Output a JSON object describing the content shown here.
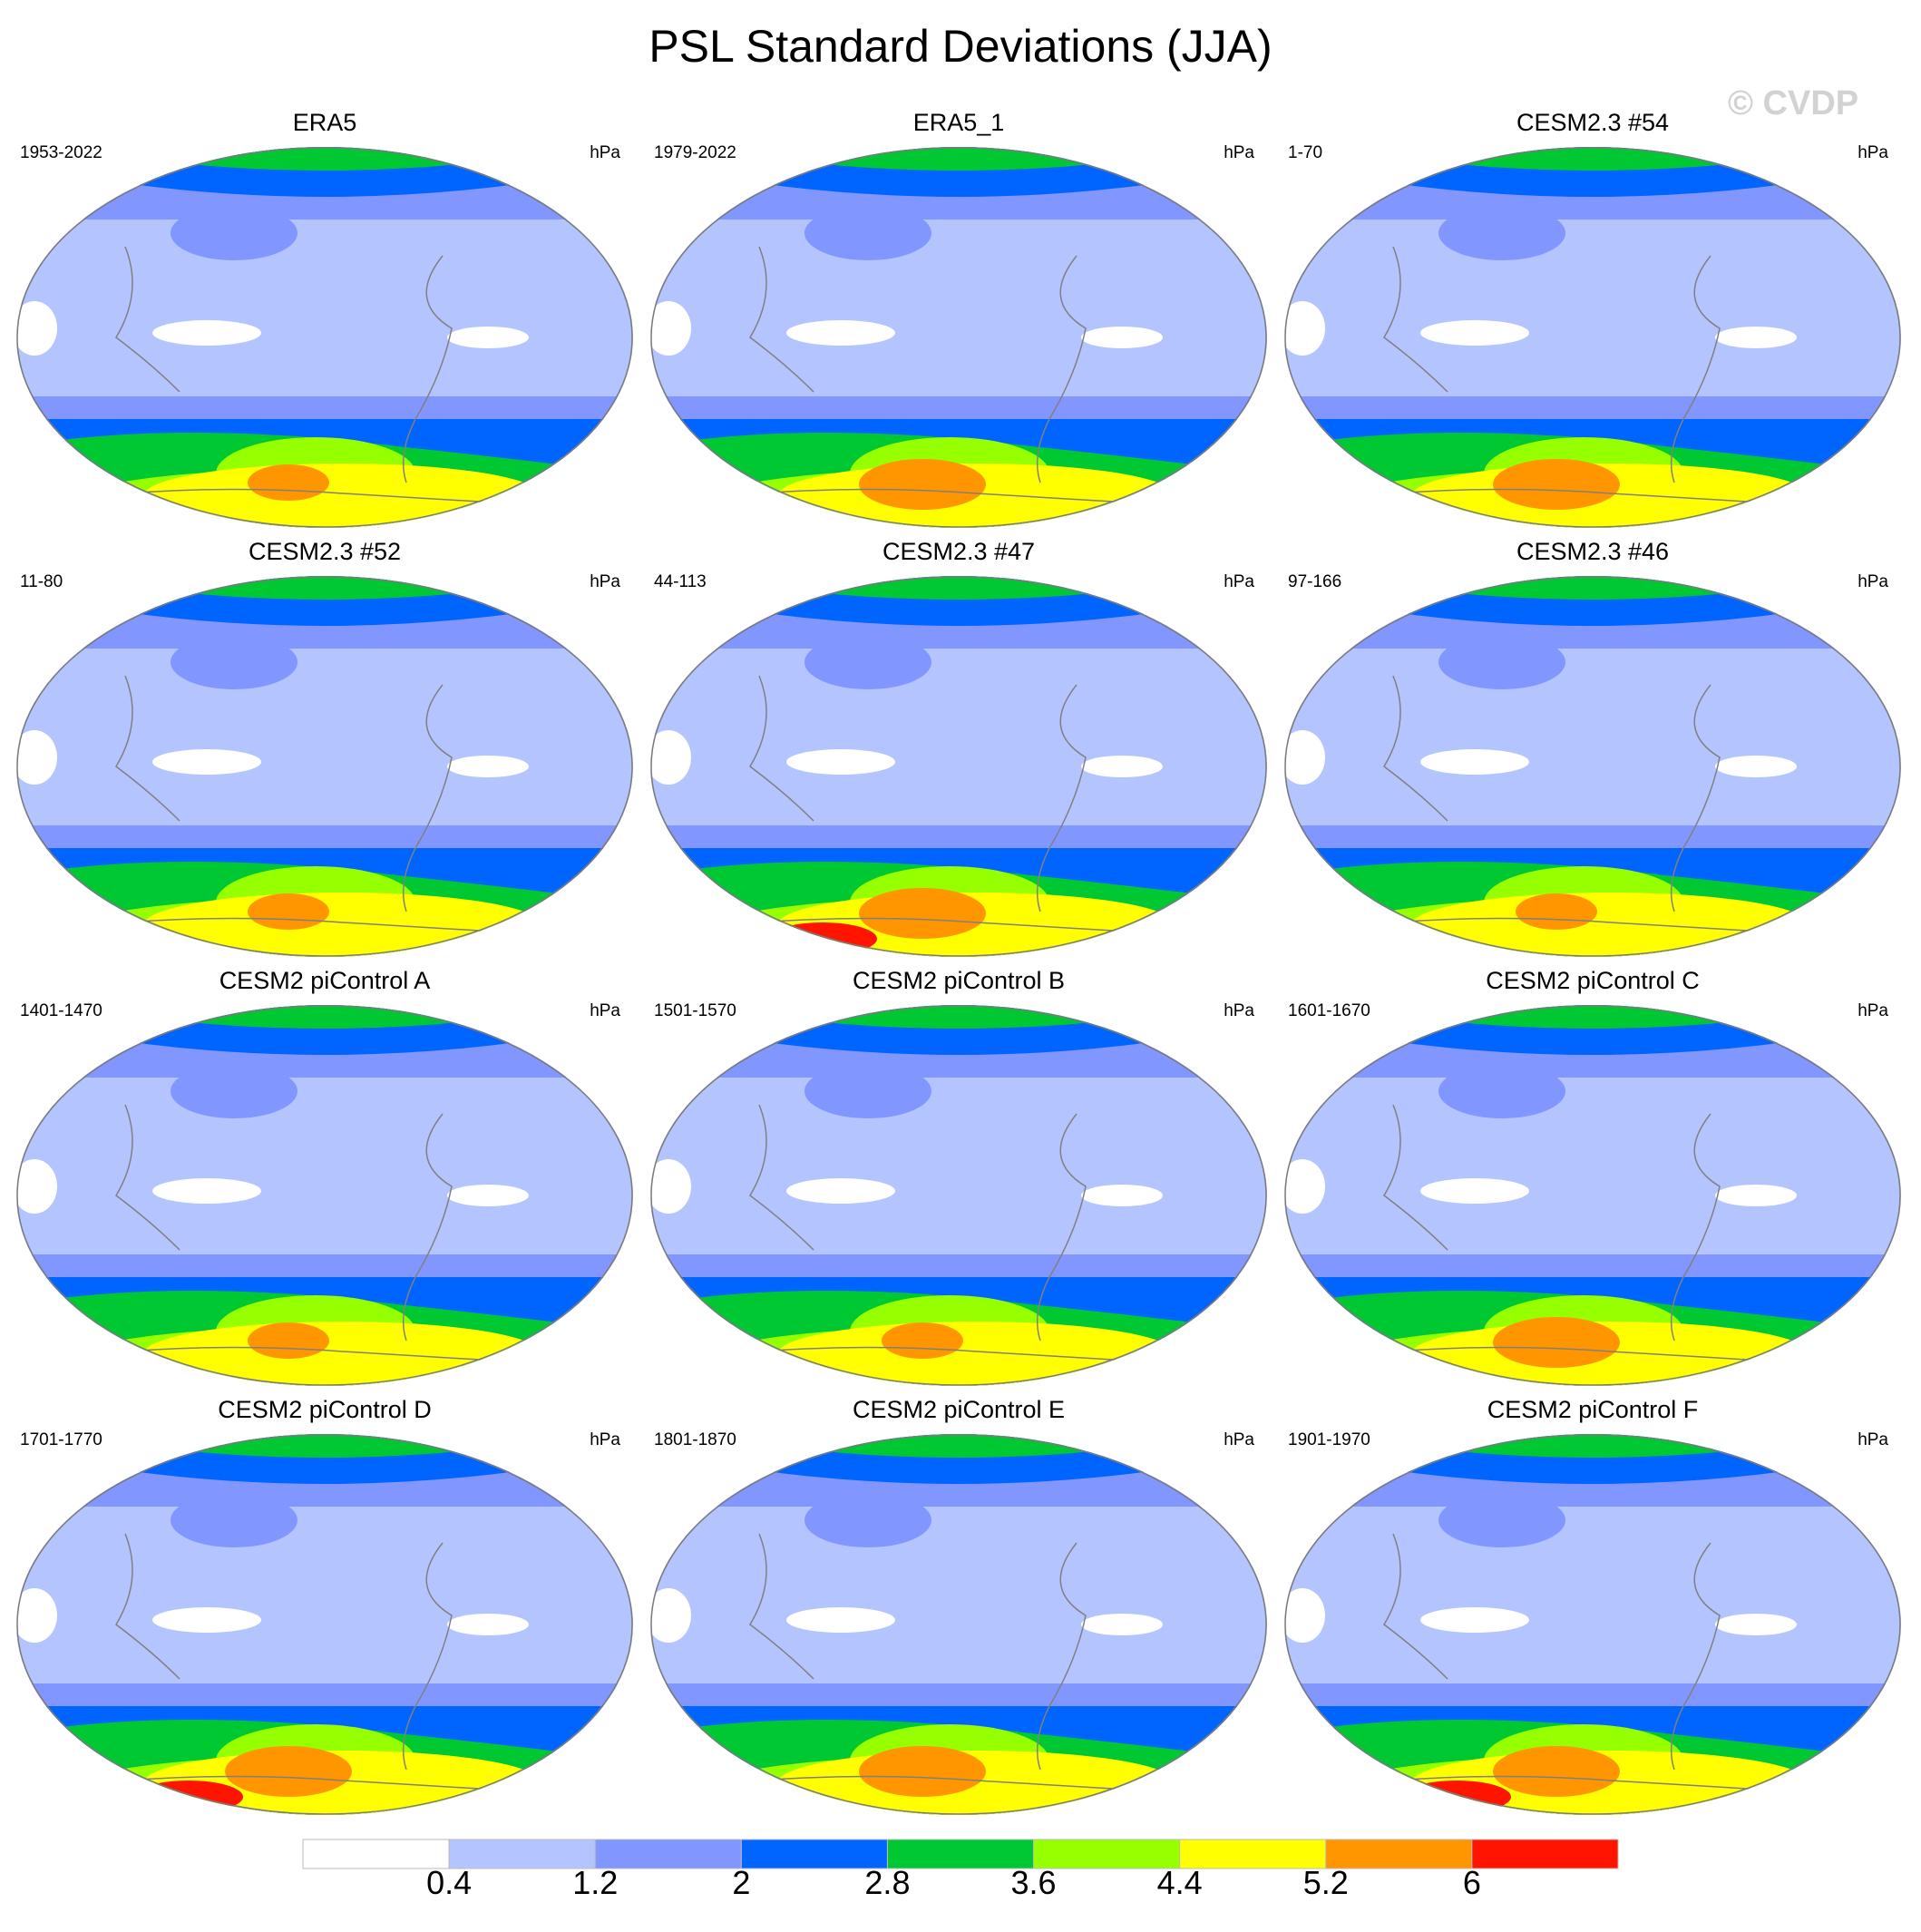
{
  "title": "PSL Standard Deviations (JJA)",
  "watermark": "© CVDP",
  "units": "hPa",
  "panels": [
    {
      "title": "ERA5",
      "period": "1953-2022"
    },
    {
      "title": "ERA5_1",
      "period": "1979-2022"
    },
    {
      "title": "CESM2.3 #54",
      "period": "1-70"
    },
    {
      "title": "CESM2.3 #52",
      "period": "11-80"
    },
    {
      "title": "CESM2.3 #47",
      "period": "44-113"
    },
    {
      "title": "CESM2.3 #46",
      "period": "97-166"
    },
    {
      "title": "CESM2 piControl A",
      "period": "1401-1470"
    },
    {
      "title": "CESM2 piControl B",
      "period": "1501-1570"
    },
    {
      "title": "CESM2 piControl C",
      "period": "1601-1670"
    },
    {
      "title": "CESM2 piControl D",
      "period": "1701-1770"
    },
    {
      "title": "CESM2 piControl E",
      "period": "1801-1870"
    },
    {
      "title": "CESM2 piControl F",
      "period": "1901-1970"
    }
  ],
  "colorbar": {
    "labels": [
      "0.4",
      "1.2",
      "2",
      "2.8",
      "3.6",
      "4.4",
      "5.2",
      "6"
    ],
    "colors": [
      "#ffffff",
      "#b4c4ff",
      "#8296ff",
      "#0064ff",
      "#00c832",
      "#96ff00",
      "#ffff00",
      "#ff9600",
      "#ff1400"
    ]
  }
}
